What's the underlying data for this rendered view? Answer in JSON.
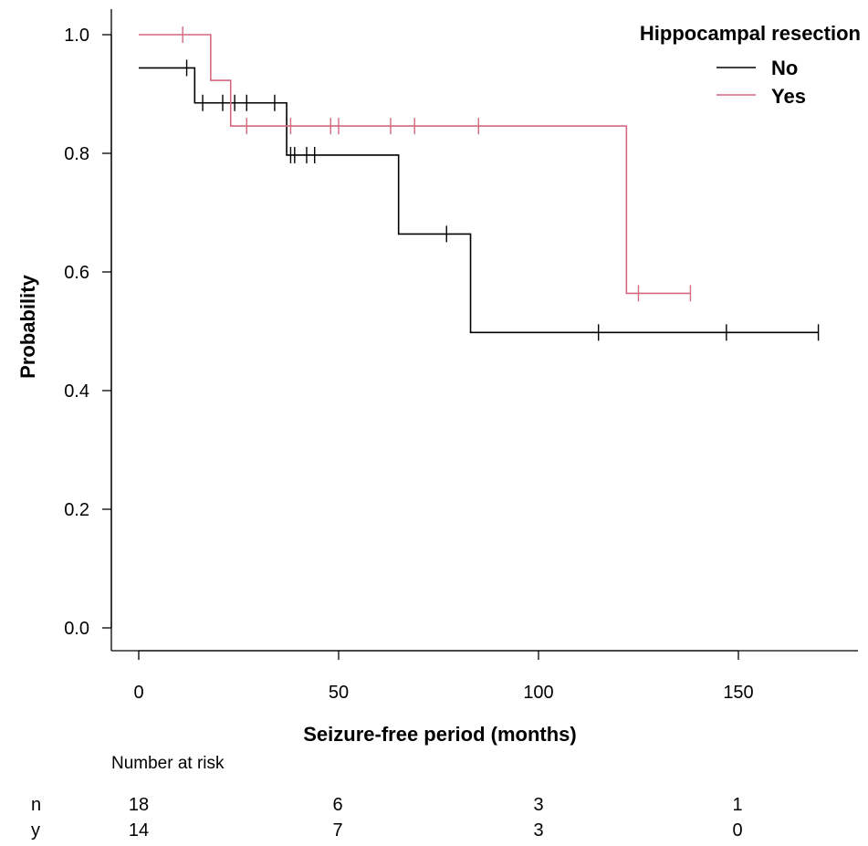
{
  "chart_data": {
    "type": "line",
    "subtype": "kaplan-meier",
    "title": "",
    "xlabel": "Seizure-free period (months)",
    "ylabel": "Probability",
    "xlim": [
      0,
      170
    ],
    "ylim": [
      0,
      1
    ],
    "xticks": [
      0,
      50,
      100,
      150
    ],
    "xtick_labels": [
      "0",
      "50",
      "100",
      "150"
    ],
    "yticks": [
      0,
      0.2,
      0.4,
      0.6,
      0.8,
      1.0
    ],
    "ytick_labels": [
      "0.0",
      "0.2",
      "0.4",
      "0.6",
      "0.8",
      "1.0"
    ],
    "grid": false,
    "legend": {
      "title": "Hippocampal resection",
      "placement": "top-right",
      "entries": [
        "No",
        "Yes"
      ]
    },
    "series": [
      {
        "name": "No",
        "color": "#000000",
        "steps": [
          [
            0,
            0.944
          ],
          [
            14,
            0.885
          ],
          [
            37,
            0.797
          ],
          [
            65,
            0.664
          ],
          [
            83,
            0.498
          ],
          [
            170,
            0.498
          ]
        ],
        "censor_times": [
          12,
          16,
          21,
          24,
          27,
          34,
          38,
          39,
          42,
          44,
          77,
          115,
          147,
          170
        ]
      },
      {
        "name": "Yes",
        "color": "#d4687f",
        "steps": [
          [
            0,
            1.0
          ],
          [
            18,
            0.923
          ],
          [
            23,
            0.846
          ],
          [
            122,
            0.564
          ],
          [
            138,
            0.564
          ]
        ],
        "censor_times": [
          11,
          27,
          38,
          48,
          50,
          63,
          69,
          85,
          125,
          138
        ]
      }
    ],
    "risk_table": {
      "title": "Number at risk",
      "times": [
        0,
        50,
        100,
        150
      ],
      "rows": [
        {
          "label": "n",
          "counts": [
            "18",
            "6",
            "3",
            "1"
          ]
        },
        {
          "label": "y",
          "counts": [
            "14",
            "7",
            "3",
            "0"
          ]
        }
      ]
    }
  }
}
